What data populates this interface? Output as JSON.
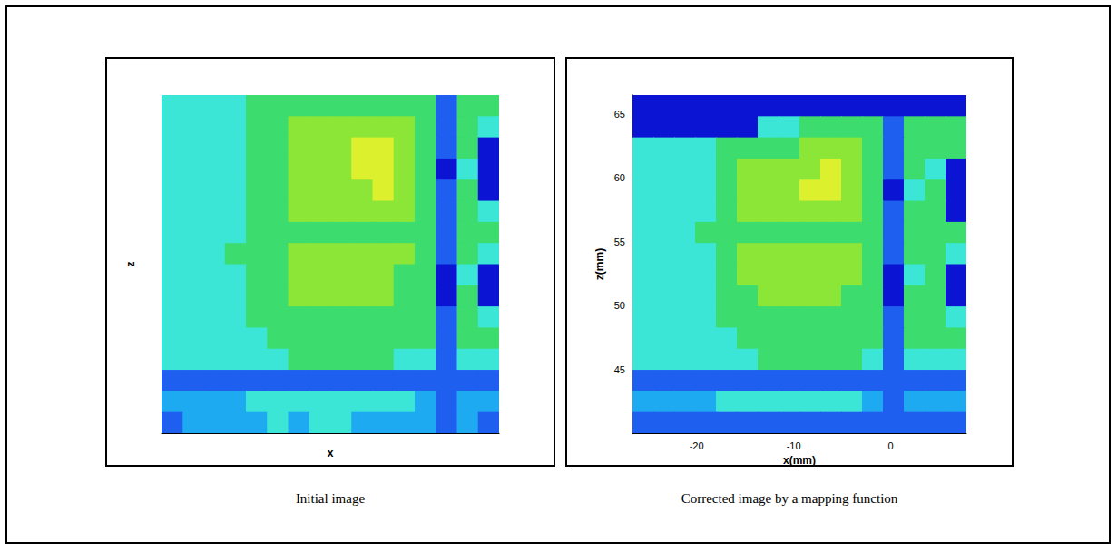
{
  "chart_data": [
    {
      "type": "heatmap",
      "caption": "Initial image",
      "xlabel": "x",
      "ylabel": "z",
      "tick_labels": false,
      "cell_range": [
        0,
        6
      ],
      "cells": [
        [
          3,
          3,
          3,
          3,
          4,
          4,
          4,
          4,
          4,
          4,
          4,
          4,
          4,
          1,
          4,
          4
        ],
        [
          3,
          3,
          3,
          3,
          4,
          4,
          5,
          5,
          5,
          5,
          5,
          5,
          4,
          1,
          4,
          3
        ],
        [
          3,
          3,
          3,
          3,
          4,
          4,
          5,
          5,
          5,
          6,
          6,
          5,
          4,
          1,
          4,
          0
        ],
        [
          3,
          3,
          3,
          3,
          4,
          4,
          5,
          5,
          5,
          6,
          6,
          5,
          4,
          0,
          3,
          0
        ],
        [
          3,
          3,
          3,
          3,
          4,
          4,
          5,
          5,
          5,
          5,
          6,
          5,
          4,
          1,
          4,
          0
        ],
        [
          3,
          3,
          3,
          3,
          4,
          4,
          5,
          5,
          5,
          5,
          5,
          5,
          4,
          1,
          4,
          3
        ],
        [
          3,
          3,
          3,
          3,
          4,
          4,
          4,
          4,
          4,
          4,
          4,
          4,
          4,
          1,
          4,
          4
        ],
        [
          3,
          3,
          3,
          4,
          4,
          4,
          5,
          5,
          5,
          5,
          5,
          5,
          4,
          1,
          4,
          3
        ],
        [
          3,
          3,
          3,
          3,
          4,
          4,
          5,
          5,
          5,
          5,
          5,
          4,
          4,
          0,
          3,
          0
        ],
        [
          3,
          3,
          3,
          3,
          4,
          4,
          5,
          5,
          5,
          5,
          5,
          4,
          4,
          0,
          4,
          0
        ],
        [
          3,
          3,
          3,
          3,
          4,
          4,
          4,
          4,
          4,
          4,
          4,
          4,
          4,
          1,
          4,
          3
        ],
        [
          3,
          3,
          3,
          3,
          3,
          4,
          4,
          4,
          4,
          4,
          4,
          4,
          4,
          1,
          4,
          4
        ],
        [
          3,
          3,
          3,
          3,
          3,
          3,
          4,
          4,
          4,
          4,
          4,
          3,
          3,
          1,
          3,
          3
        ],
        [
          1,
          1,
          1,
          1,
          1,
          1,
          1,
          1,
          1,
          1,
          1,
          1,
          1,
          1,
          1,
          1
        ],
        [
          2,
          2,
          2,
          2,
          3,
          3,
          3,
          3,
          3,
          3,
          3,
          3,
          2,
          1,
          2,
          2
        ],
        [
          1,
          2,
          2,
          2,
          2,
          3,
          2,
          3,
          3,
          2,
          2,
          2,
          2,
          1,
          2,
          1
        ]
      ]
    },
    {
      "type": "heatmap",
      "caption": "Corrected image by a mapping function",
      "xlabel": "x(mm)",
      "ylabel": "z(mm)",
      "xlim": [
        -26.6,
        7.8
      ],
      "ylim": [
        40,
        66.5
      ],
      "xticks": [
        -20,
        -10,
        0
      ],
      "yticks": [
        45,
        50,
        55,
        60,
        65
      ],
      "cell_range": [
        0,
        6
      ],
      "cells": [
        [
          0,
          0,
          0,
          0,
          0,
          0,
          0,
          0,
          0,
          0,
          0,
          0,
          0,
          0,
          0,
          0
        ],
        [
          0,
          0,
          0,
          0,
          0,
          0,
          3,
          3,
          4,
          4,
          4,
          4,
          1,
          4,
          4,
          4
        ],
        [
          3,
          3,
          3,
          3,
          4,
          4,
          4,
          4,
          5,
          5,
          5,
          4,
          1,
          4,
          4,
          4
        ],
        [
          3,
          3,
          3,
          3,
          4,
          5,
          5,
          5,
          5,
          6,
          5,
          4,
          1,
          4,
          3,
          0
        ],
        [
          3,
          3,
          3,
          3,
          4,
          5,
          5,
          5,
          6,
          6,
          5,
          4,
          0,
          3,
          4,
          0
        ],
        [
          3,
          3,
          3,
          3,
          4,
          5,
          5,
          5,
          5,
          5,
          5,
          4,
          1,
          4,
          4,
          0
        ],
        [
          3,
          3,
          3,
          4,
          4,
          4,
          4,
          4,
          4,
          4,
          4,
          4,
          1,
          4,
          4,
          4
        ],
        [
          3,
          3,
          3,
          3,
          4,
          5,
          5,
          5,
          5,
          5,
          5,
          4,
          1,
          4,
          4,
          3
        ],
        [
          3,
          3,
          3,
          3,
          4,
          5,
          5,
          5,
          5,
          5,
          5,
          4,
          0,
          3,
          4,
          0
        ],
        [
          3,
          3,
          3,
          3,
          4,
          4,
          5,
          5,
          5,
          5,
          4,
          4,
          0,
          4,
          4,
          0
        ],
        [
          3,
          3,
          3,
          3,
          4,
          4,
          4,
          4,
          4,
          4,
          4,
          4,
          1,
          4,
          4,
          3
        ],
        [
          3,
          3,
          3,
          3,
          3,
          4,
          4,
          4,
          4,
          4,
          4,
          4,
          1,
          4,
          4,
          4
        ],
        [
          3,
          3,
          3,
          3,
          3,
          3,
          4,
          4,
          4,
          4,
          4,
          3,
          1,
          3,
          3,
          3
        ],
        [
          1,
          1,
          1,
          1,
          1,
          1,
          1,
          1,
          1,
          1,
          1,
          1,
          1,
          1,
          1,
          1
        ],
        [
          2,
          2,
          2,
          2,
          3,
          3,
          3,
          3,
          3,
          3,
          3,
          2,
          1,
          2,
          2,
          2
        ],
        [
          1,
          1,
          1,
          1,
          1,
          1,
          1,
          1,
          1,
          1,
          1,
          1,
          1,
          1,
          1,
          1
        ]
      ]
    }
  ]
}
